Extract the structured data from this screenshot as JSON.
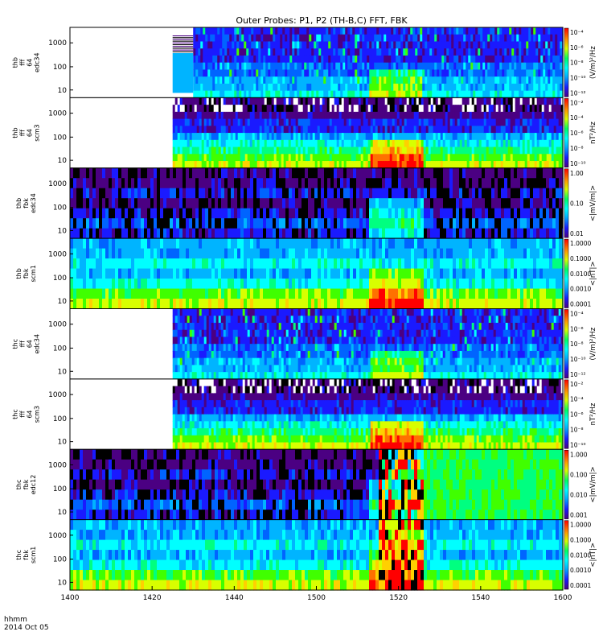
{
  "chart_data": {
    "type": "heatmap",
    "title": "Outer Probes: P1, P2 (TH-B,C) FFT, FBK",
    "x_axis": {
      "range": [
        1400,
        1600
      ],
      "ticks": [
        1400,
        1420,
        1440,
        1500,
        1520,
        1540,
        1600
      ],
      "tick_labels": [
        "1400",
        "1420",
        "1440",
        "1500",
        "1520",
        "1540",
        "1600"
      ],
      "label_line1": "hhmm",
      "label_line2": "2014 Oct 05"
    },
    "panels": [
      {
        "id": "thb-fff-e34",
        "ylabel_lines": [
          "thb",
          "fff",
          "64",
          "edc34"
        ],
        "y_scale": "log",
        "y_ticks": [
          "1000",
          "100",
          "10"
        ],
        "colorbar_scale": "log",
        "colorbar_ticks": [
          "10⁻⁴",
          "10⁻⁶",
          "10⁻⁸",
          "10⁻¹⁰",
          "10⁻¹²"
        ],
        "colorbar_label": "(V/m)²/Hz",
        "data_start_hhmm": "1430",
        "pre_block_start_hhmm": "1425",
        "spectral_character": "broadband impulsive bursts over a deep blue background"
      },
      {
        "id": "thb-fff-b3",
        "ylabel_lines": [
          "thb",
          "fff",
          "64",
          "scm3"
        ],
        "y_scale": "log",
        "y_ticks": [
          "1000",
          "100",
          "10"
        ],
        "colorbar_scale": "log",
        "colorbar_ticks": [
          "10⁻²",
          "10⁻⁴",
          "10⁻⁶",
          "10⁻⁸",
          "10⁻¹⁰"
        ],
        "colorbar_label": "nT²/Hz",
        "data_start_hhmm": "1425",
        "spectral_character": "yellow/green low-frequency band enhanced near 1510-1520"
      },
      {
        "id": "thb-fbk-e34",
        "ylabel_lines": [
          "thb",
          "fbk",
          "edc34"
        ],
        "y_scale": "log",
        "y_ticks": [
          "1000",
          "100",
          "10"
        ],
        "colorbar_scale": "log",
        "colorbar_ticks": [
          "1.00",
          "0.10",
          "0.01"
        ],
        "colorbar_label": "<|mV/m|>",
        "data_start_hhmm": "1400",
        "spectral_character": "black/blue banded filter-bank values"
      },
      {
        "id": "thb-fbk-b1",
        "ylabel_lines": [
          "thb",
          "fbk",
          "scm1"
        ],
        "y_scale": "log",
        "y_ticks": [
          "1000",
          "100",
          "10"
        ],
        "colorbar_scale": "log",
        "colorbar_ticks": [
          "1.0000",
          "0.1000",
          "0.0100",
          "0.0010",
          "0.0001"
        ],
        "colorbar_label": "<|nT|>",
        "data_start_hhmm": "1400",
        "spectral_character": "cyan upper bands, yellow/green lower bands, enhanced near 1515"
      },
      {
        "id": "thc-fff-e34",
        "ylabel_lines": [
          "thc",
          "fff",
          "64",
          "edc34"
        ],
        "y_scale": "log",
        "y_ticks": [
          "1000",
          "100",
          "10"
        ],
        "colorbar_scale": "log",
        "colorbar_ticks": [
          "10⁻⁴",
          "10⁻⁶",
          "10⁻⁸",
          "10⁻¹⁰",
          "10⁻¹²"
        ],
        "colorbar_label": "(V/m)²/Hz",
        "data_start_hhmm": "1425",
        "spectral_character": "broadband impulsive bursts over a deep blue background"
      },
      {
        "id": "thc-fff-b3",
        "ylabel_lines": [
          "thc",
          "fff",
          "64",
          "scm3"
        ],
        "y_scale": "log",
        "y_ticks": [
          "1000",
          "100",
          "10"
        ],
        "colorbar_scale": "log",
        "colorbar_ticks": [
          "10⁻²",
          "10⁻⁴",
          "10⁻⁶",
          "10⁻⁸",
          "10⁻¹⁰"
        ],
        "colorbar_label": "nT²/Hz",
        "data_start_hhmm": "1425",
        "spectral_character": "purple background with cyan tone near 100 Hz"
      },
      {
        "id": "thc-fbk-e12",
        "ylabel_lines": [
          "thc",
          "fbk",
          "edc12"
        ],
        "y_scale": "log",
        "y_ticks": [
          "1000",
          "100",
          "10"
        ],
        "colorbar_scale": "log",
        "colorbar_ticks": [
          "1.000",
          "0.100",
          "0.010",
          "0.001"
        ],
        "colorbar_label": "<|mV/m|>",
        "data_start_hhmm": "1400",
        "spectral_character": "black/blue until ~1515, strong red/yellow bursts 1515-1525, green/cyan afterwards"
      },
      {
        "id": "thc-fbk-b1",
        "ylabel_lines": [
          "thc",
          "fbk",
          "scm1"
        ],
        "y_scale": "log",
        "y_ticks": [
          "1000",
          "100",
          "10"
        ],
        "colorbar_scale": "log",
        "colorbar_ticks": [
          "1.0000",
          "0.1000",
          "0.0100",
          "0.0010",
          "0.0001"
        ],
        "colorbar_label": "<|nT|>",
        "data_start_hhmm": "1400",
        "spectral_character": "cyan/green bands, strong red/black bursts 1515-1525"
      }
    ]
  }
}
